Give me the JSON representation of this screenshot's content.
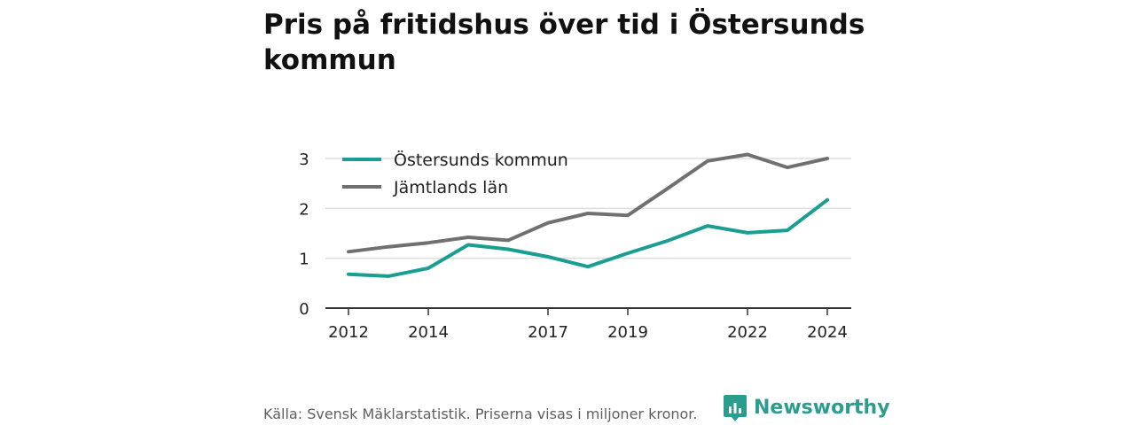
{
  "title": "Pris på fritidshus över tid i Östersunds kommun",
  "source": "Källa: Svensk Mäklarstatistik. Priserna visas i miljoner kronor.",
  "brand": "Newsworthy",
  "colors": {
    "series1": "#1a9e92",
    "series2": "#707070",
    "grid": "#dddddd",
    "brand": "#2a9d8f"
  },
  "chart_data": {
    "type": "line",
    "x": [
      2012,
      2013,
      2014,
      2015,
      2016,
      2017,
      2018,
      2019,
      2020,
      2021,
      2022,
      2023,
      2024
    ],
    "xticks": [
      "2012",
      "2014",
      "2017",
      "2019",
      "2022",
      "2024"
    ],
    "yticks": [
      "0",
      "1",
      "2",
      "3"
    ],
    "ylim": [
      0,
      3.15
    ],
    "grid": true,
    "legend": "top-left",
    "series": [
      {
        "name": "Östersunds kommun",
        "values": [
          0.68,
          0.64,
          0.8,
          1.27,
          1.18,
          1.03,
          0.83,
          1.1,
          1.35,
          1.65,
          1.51,
          1.56,
          2.17
        ]
      },
      {
        "name": "Jämtlands län",
        "values": [
          1.13,
          1.23,
          1.31,
          1.42,
          1.36,
          1.71,
          1.9,
          1.86,
          2.4,
          2.95,
          3.08,
          2.82,
          3.0
        ]
      }
    ]
  }
}
